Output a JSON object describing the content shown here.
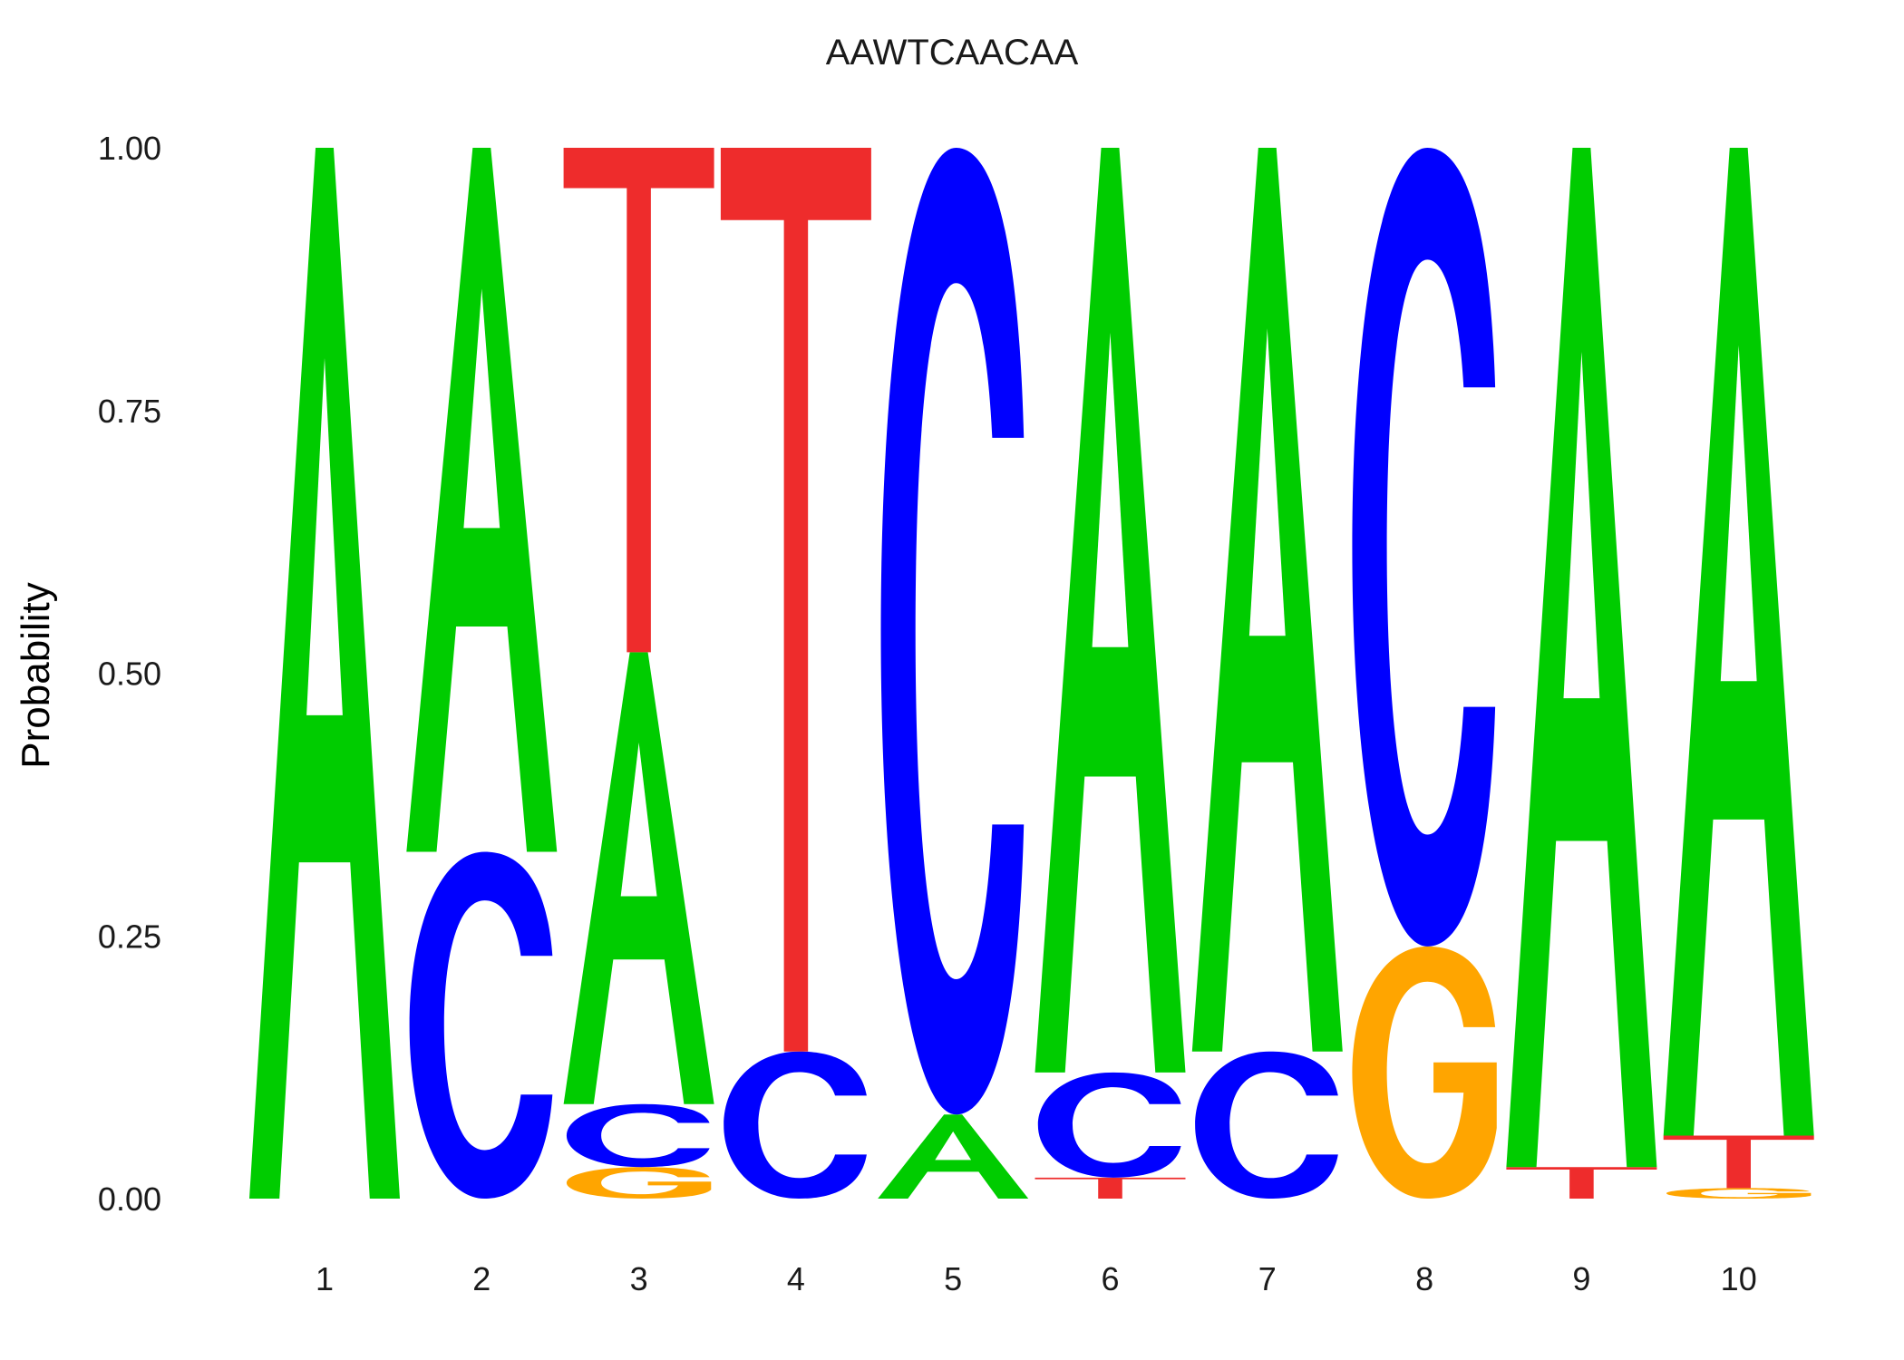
{
  "chart_data": {
    "type": "sequence-logo",
    "title": "AAWTCAACAA",
    "ylabel": "Probability",
    "xlabel": "",
    "ylim": [
      0,
      1
    ],
    "yticks": [
      "0.00",
      "0.25",
      "0.50",
      "0.75",
      "1.00"
    ],
    "ytick_values": [
      0,
      0.25,
      0.5,
      0.75,
      1.0
    ],
    "grid": false,
    "colors": {
      "A": "#00cc00",
      "C": "#0000ff",
      "G": "#ffa500",
      "T": "#ee2c2c"
    },
    "positions": [
      {
        "label": "1",
        "letters": [
          {
            "letter": "A",
            "value": 1.0
          }
        ]
      },
      {
        "label": "2",
        "letters": [
          {
            "letter": "C",
            "value": 0.33
          },
          {
            "letter": "A",
            "value": 0.67
          }
        ]
      },
      {
        "label": "3",
        "letters": [
          {
            "letter": "G",
            "value": 0.03
          },
          {
            "letter": "C",
            "value": 0.06
          },
          {
            "letter": "A",
            "value": 0.43
          },
          {
            "letter": "T",
            "value": 0.48
          }
        ]
      },
      {
        "label": "4",
        "letters": [
          {
            "letter": "C",
            "value": 0.14
          },
          {
            "letter": "T",
            "value": 0.86
          }
        ]
      },
      {
        "label": "5",
        "letters": [
          {
            "letter": "A",
            "value": 0.08
          },
          {
            "letter": "C",
            "value": 0.92
          }
        ]
      },
      {
        "label": "6",
        "letters": [
          {
            "letter": "T",
            "value": 0.02
          },
          {
            "letter": "C",
            "value": 0.1
          },
          {
            "letter": "A",
            "value": 0.88
          }
        ]
      },
      {
        "label": "7",
        "letters": [
          {
            "letter": "C",
            "value": 0.14
          },
          {
            "letter": "A",
            "value": 0.86
          }
        ]
      },
      {
        "label": "8",
        "letters": [
          {
            "letter": "G",
            "value": 0.24
          },
          {
            "letter": "C",
            "value": 0.76
          }
        ]
      },
      {
        "label": "9",
        "letters": [
          {
            "letter": "T",
            "value": 0.03
          },
          {
            "letter": "A",
            "value": 0.97
          }
        ]
      },
      {
        "label": "10",
        "letters": [
          {
            "letter": "G",
            "value": 0.01
          },
          {
            "letter": "T",
            "value": 0.05
          },
          {
            "letter": "A",
            "value": 0.94
          }
        ]
      }
    ]
  }
}
